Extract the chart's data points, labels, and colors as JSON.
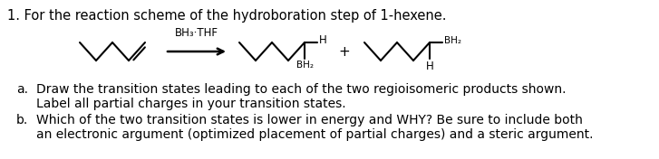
{
  "title_text": "1. For the reaction scheme of the hydroboration step of 1-hexene.",
  "item_a_label": "a.",
  "item_a_text1": "Draw the transition states leading to each of the two regioisomeric products shown.",
  "item_a_text2": "Label all partial charges in your transition states.",
  "item_b_label": "b.",
  "item_b_text1": "Which of the two transition states is lower in energy and WHY? Be sure to include both",
  "item_b_text2": "an electronic argument (optimized placement of partial charges) and a steric argument.",
  "reagent_label": "BH₃·THF",
  "text_color": "#000000",
  "bg_color": "#ffffff",
  "font_size_title": 10.5,
  "font_size_body": 10.0,
  "font_size_chem": 8.5,
  "font_size_sub": 7.5,
  "line_color": "#000000",
  "line_width": 1.5
}
